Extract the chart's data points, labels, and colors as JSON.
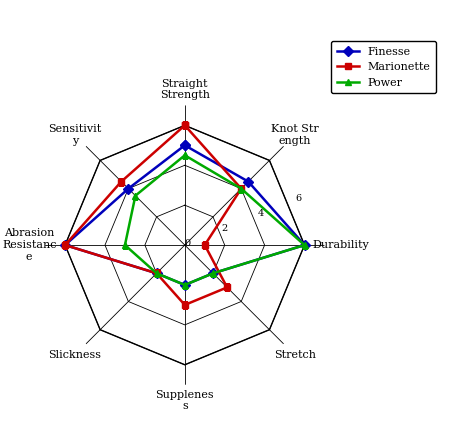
{
  "categories": [
    "Straight\nStrength",
    "Knot Str\nength",
    "Durability",
    "Stretch",
    "Supplenes\ns",
    "Slickness",
    "Abrasion\nResistanc\ne",
    "Sensitivit\ny"
  ],
  "series": {
    "Finesse": [
      5.0,
      4.5,
      6.0,
      2.0,
      2.0,
      2.0,
      6.0,
      4.0
    ],
    "Marionette": [
      6.0,
      4.0,
      1.0,
      3.0,
      3.0,
      2.0,
      6.0,
      4.5
    ],
    "Power": [
      4.5,
      4.0,
      6.0,
      2.0,
      2.0,
      2.0,
      3.0,
      3.5
    ]
  },
  "colors": {
    "Finesse": "#0000bb",
    "Marionette": "#cc0000",
    "Power": "#00aa00"
  },
  "markers": {
    "Finesse": "D",
    "Marionette": "s",
    "Power": "^"
  },
  "rmax": 7,
  "rticks": [
    0,
    2,
    4,
    6
  ],
  "figsize": [
    4.6,
    4.41
  ],
  "dpi": 100
}
